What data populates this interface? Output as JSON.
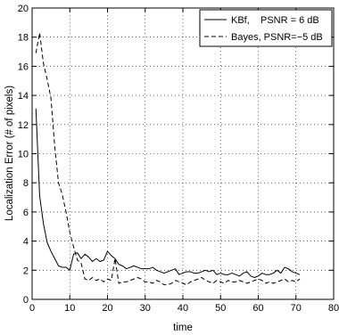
{
  "chart_data": {
    "type": "line",
    "title": "",
    "xlabel": "time",
    "ylabel": "Localization Error (# of pixels)",
    "xlim": [
      0,
      80
    ],
    "ylim": [
      0,
      20
    ],
    "xticks": [
      0,
      10,
      20,
      30,
      40,
      50,
      60,
      70,
      80
    ],
    "xtick_labels": [
      "0",
      "10",
      "20",
      "30",
      "40",
      "50",
      "60",
      "70",
      "80"
    ],
    "yticks": [
      0,
      2,
      4,
      6,
      8,
      10,
      12,
      14,
      16,
      18,
      20
    ],
    "ytick_labels": [
      "0",
      "2",
      "4",
      "6",
      "8",
      "10",
      "12",
      "14",
      "16",
      "18",
      "20"
    ],
    "grid": true,
    "legend_position": "top-right",
    "series": [
      {
        "name": "KBf,    PSNR = 6 dB",
        "line_style": "solid",
        "color": "#000000",
        "x": [
          1,
          2,
          3,
          4,
          5,
          6,
          7,
          8,
          9,
          10,
          11,
          12,
          13,
          14,
          15,
          16,
          17,
          18,
          19,
          20,
          21,
          22,
          23,
          24,
          25,
          26,
          27,
          28,
          29,
          30,
          31,
          32,
          33,
          34,
          35,
          36,
          37,
          38,
          39,
          40,
          41,
          42,
          43,
          44,
          45,
          46,
          47,
          48,
          49,
          50,
          51,
          52,
          53,
          54,
          55,
          56,
          57,
          58,
          59,
          60,
          61,
          62,
          63,
          64,
          65,
          66,
          67,
          68,
          69,
          70,
          71
        ],
        "y": [
          13.1,
          7.1,
          5.2,
          3.9,
          3.3,
          2.8,
          2.3,
          2.2,
          2.2,
          2.0,
          3.1,
          3.2,
          2.8,
          3.1,
          2.9,
          2.6,
          2.8,
          2.6,
          2.7,
          3.3,
          3.0,
          2.8,
          2.4,
          2.3,
          2.1,
          2.2,
          2.3,
          2.2,
          2.1,
          2.1,
          2.1,
          2.2,
          2.0,
          1.9,
          1.8,
          1.9,
          2.0,
          2.1,
          1.7,
          1.8,
          1.9,
          1.9,
          1.8,
          1.8,
          1.9,
          2.0,
          1.9,
          2.0,
          1.7,
          1.8,
          1.7,
          1.7,
          1.8,
          1.7,
          1.6,
          1.8,
          1.9,
          1.6,
          1.5,
          1.6,
          1.8,
          1.7,
          1.7,
          1.8,
          2.0,
          1.8,
          2.2,
          2.1,
          1.9,
          1.8,
          1.7
        ]
      },
      {
        "name": "Bayes, PSNR=−5 dB",
        "line_style": "dashed",
        "color": "#000000",
        "x": [
          1,
          2,
          3,
          4,
          5,
          6,
          7,
          8,
          9,
          10,
          11,
          12,
          13,
          14,
          15,
          16,
          17,
          18,
          19,
          20,
          21,
          22,
          23,
          24,
          25,
          26,
          27,
          28,
          29,
          30,
          31,
          32,
          33,
          34,
          35,
          36,
          37,
          38,
          39,
          40,
          41,
          42,
          43,
          44,
          45,
          46,
          47,
          48,
          49,
          50,
          51,
          52,
          53,
          54,
          55,
          56,
          57,
          58,
          59,
          60,
          61,
          62,
          63,
          64,
          65,
          66,
          67,
          68,
          69,
          70,
          71
        ],
        "y": [
          16.9,
          18.3,
          16.2,
          15.1,
          13.8,
          10.5,
          8.0,
          7.2,
          6.0,
          4.6,
          3.6,
          2.7,
          2.5,
          1.4,
          1.3,
          1.5,
          1.3,
          1.4,
          1.2,
          1.4,
          1.3,
          2.8,
          1.1,
          1.2,
          1.2,
          1.3,
          1.4,
          1.5,
          1.4,
          1.2,
          1.2,
          1.1,
          1.3,
          1.2,
          1.0,
          1.0,
          1.1,
          1.3,
          1.2,
          1.1,
          1.0,
          1.2,
          1.3,
          1.4,
          1.5,
          1.3,
          1.2,
          1.1,
          1.3,
          1.2,
          1.1,
          1.3,
          1.2,
          1.2,
          1.3,
          1.2,
          1.1,
          1.2,
          1.3,
          1.4,
          1.3,
          1.1,
          1.2,
          1.1,
          1.2,
          1.3,
          1.4,
          1.2,
          1.3,
          1.2,
          1.4
        ]
      }
    ]
  }
}
